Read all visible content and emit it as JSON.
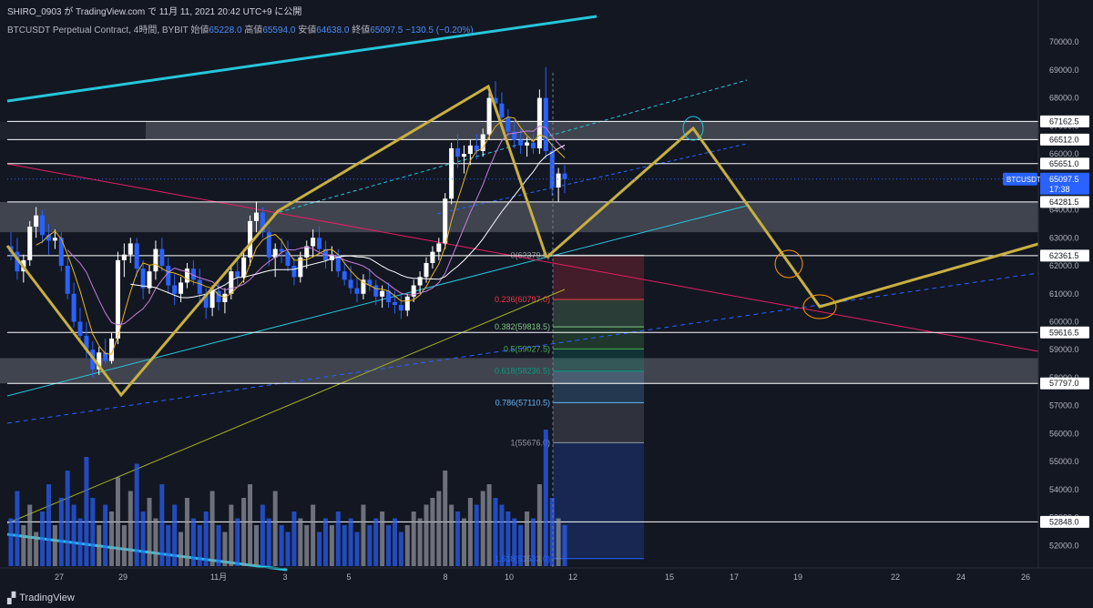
{
  "header": {
    "publish_line": "SHIRO_0903 が TradingView.com で 11月 11, 2021 20:42 UTC+9 に公開",
    "symbol": "BTCUSDT Perpetual Contract, 4時間, BYBIT",
    "open_label": "始値",
    "open": "65228.0",
    "high_label": "高値",
    "high": "65594.0",
    "low_label": "安値",
    "low": "64638.0",
    "close_label": "終値",
    "close": "65097.5",
    "change": "−130.5 (−0.20%)"
  },
  "footer": {
    "brand": "TradingView",
    "logo_icon": "tradingview-logo-icon"
  },
  "colors": {
    "background": "#131722",
    "up": "#ffffff",
    "down": "#2962ff",
    "channel": "#26c6da",
    "zigzag": "#c8b040",
    "trend_red": "#e91e63",
    "level_line": "#ffffff"
  },
  "chart_data": {
    "type": "candlestick",
    "timeframe": "4時間",
    "ylim": [
      51200,
      71500
    ],
    "y_ticks": [
      52000,
      53000,
      54000,
      55000,
      56000,
      57000,
      58000,
      59000,
      60000,
      61000,
      62000,
      63000,
      64000,
      65000,
      66000,
      67000,
      68000,
      69000,
      70000
    ],
    "y_tick_format": "0.0",
    "x_ticks": [
      "27",
      "29",
      "11月",
      "3",
      "5",
      "8",
      "10",
      "12",
      "15",
      "17",
      "19",
      "22",
      "24",
      "26"
    ],
    "current_price": {
      "label": "BTCUSDT",
      "value": "65097.5",
      "countdown": "17:38"
    },
    "horizontal_levels": [
      "67162.5",
      "66512.0",
      "65651.0",
      "64281.5",
      "62361.5",
      "59616.5",
      "57797.0",
      "52848.0"
    ],
    "fib_retracement": [
      {
        "label": "0(62379.0)",
        "value": 62379.0,
        "color": "#9598a1"
      },
      {
        "label": "0.236(60797.0)",
        "value": 60797.0,
        "color": "#f23645"
      },
      {
        "label": "0.382(59818.5)",
        "value": 59818.5,
        "color": "#81c784"
      },
      {
        "label": "0.5(59027.5)",
        "value": 59027.5,
        "color": "#4caf50"
      },
      {
        "label": "0.618(58236.5)",
        "value": 58236.5,
        "color": "#089981"
      },
      {
        "label": "0.786(57110.5)",
        "value": 57110.5,
        "color": "#64b5f6"
      },
      {
        "label": "1(55676.0)",
        "value": 55676.0,
        "color": "#9598a1"
      },
      {
        "label": "1.618(51533.0)",
        "value": 51533.0,
        "color": "#2962ff"
      }
    ],
    "zones": [
      {
        "from": 66512,
        "to": 67162.5,
        "color": "#9598a1"
      },
      {
        "from": 63200,
        "to": 64281.5,
        "color": "#9598a1"
      },
      {
        "from": 57797,
        "to": 58700,
        "color": "#9598a1"
      }
    ],
    "candles": [
      [
        62700,
        63200,
        62200,
        62500
      ],
      [
        62500,
        63000,
        61500,
        61800
      ],
      [
        61800,
        62400,
        61400,
        62200
      ],
      [
        62200,
        63600,
        62000,
        63400
      ],
      [
        63400,
        64100,
        63000,
        63800
      ],
      [
        63800,
        64000,
        62800,
        63100
      ],
      [
        63100,
        63500,
        62400,
        62900
      ],
      [
        62900,
        63300,
        62600,
        63000
      ],
      [
        63000,
        63200,
        61800,
        62000
      ],
      [
        62000,
        62300,
        60800,
        61000
      ],
      [
        61000,
        61400,
        59800,
        60000
      ],
      [
        60000,
        60500,
        59300,
        59500
      ],
      [
        59500,
        60000,
        58700,
        59000
      ],
      [
        59000,
        59300,
        58000,
        58300
      ],
      [
        58300,
        59100,
        58100,
        58900
      ],
      [
        58900,
        59400,
        58500,
        58600
      ],
      [
        58600,
        59600,
        58500,
        59400
      ],
      [
        59400,
        62500,
        59200,
        62200
      ],
      [
        62200,
        62800,
        61600,
        62400
      ],
      [
        62400,
        63000,
        62100,
        62800
      ],
      [
        62800,
        63000,
        61600,
        61900
      ],
      [
        61900,
        62200,
        60800,
        61200
      ],
      [
        61200,
        62000,
        61000,
        61800
      ],
      [
        61800,
        62900,
        61500,
        62600
      ],
      [
        62600,
        63000,
        61800,
        62000
      ],
      [
        62000,
        62300,
        61000,
        61300
      ],
      [
        61300,
        61700,
        60600,
        61000
      ],
      [
        61000,
        61600,
        60700,
        61400
      ],
      [
        61400,
        62100,
        61200,
        61900
      ],
      [
        61900,
        62200,
        61300,
        61500
      ],
      [
        61500,
        61900,
        60700,
        61000
      ],
      [
        61000,
        61200,
        60100,
        60500
      ],
      [
        60500,
        61300,
        60200,
        61100
      ],
      [
        61100,
        61500,
        60400,
        60700
      ],
      [
        60700,
        61200,
        60300,
        61000
      ],
      [
        61000,
        62000,
        60800,
        61800
      ],
      [
        61800,
        62300,
        61300,
        61600
      ],
      [
        61600,
        62600,
        61400,
        62300
      ],
      [
        62300,
        63800,
        62000,
        63600
      ],
      [
        63600,
        64300,
        63200,
        63900
      ],
      [
        63900,
        64100,
        63000,
        63200
      ],
      [
        63200,
        63400,
        62000,
        62300
      ],
      [
        62300,
        62800,
        61600,
        62600
      ],
      [
        62600,
        63000,
        62100,
        62500
      ],
      [
        62500,
        62900,
        61800,
        62000
      ],
      [
        62000,
        62300,
        61300,
        61600
      ],
      [
        61600,
        62500,
        61400,
        62300
      ],
      [
        62300,
        62900,
        61900,
        62700
      ],
      [
        62700,
        63300,
        62300,
        63000
      ],
      [
        63000,
        63400,
        62400,
        62600
      ],
      [
        62600,
        62900,
        61900,
        62200
      ],
      [
        62200,
        62700,
        61800,
        62400
      ],
      [
        62400,
        62600,
        61600,
        61800
      ],
      [
        61800,
        62100,
        61300,
        61500
      ],
      [
        61500,
        62000,
        61000,
        61200
      ],
      [
        61200,
        61600,
        60700,
        61000
      ],
      [
        61000,
        61700,
        60800,
        61500
      ],
      [
        61500,
        61900,
        61100,
        61300
      ],
      [
        61300,
        61500,
        60600,
        60900
      ],
      [
        60900,
        61300,
        60500,
        61100
      ],
      [
        61100,
        61400,
        60500,
        60700
      ],
      [
        60700,
        61100,
        60300,
        60600
      ],
      [
        60600,
        61000,
        60100,
        60400
      ],
      [
        60400,
        61000,
        60200,
        60900
      ],
      [
        60900,
        61500,
        60700,
        61300
      ],
      [
        61300,
        61800,
        61000,
        61600
      ],
      [
        61600,
        62300,
        61400,
        62100
      ],
      [
        62100,
        62700,
        61900,
        62500
      ],
      [
        62500,
        63000,
        62200,
        62800
      ],
      [
        62800,
        64600,
        62600,
        64400
      ],
      [
        64400,
        66400,
        64200,
        66200
      ],
      [
        66200,
        66700,
        65500,
        65900
      ],
      [
        65900,
        66300,
        65300,
        66000
      ],
      [
        66000,
        66500,
        65600,
        66300
      ],
      [
        66300,
        66700,
        65800,
        66100
      ],
      [
        66100,
        66900,
        65900,
        66700
      ],
      [
        66700,
        68200,
        66500,
        68000
      ],
      [
        68000,
        68600,
        67500,
        67800
      ],
      [
        67800,
        68200,
        67000,
        67300
      ],
      [
        67300,
        67600,
        66600,
        66800
      ],
      [
        66800,
        67200,
        66200,
        66500
      ],
      [
        66500,
        66900,
        66000,
        66300
      ],
      [
        66300,
        66600,
        65900,
        66400
      ],
      [
        66400,
        66700,
        66000,
        66200
      ],
      [
        66200,
        68300,
        66000,
        68000
      ],
      [
        68000,
        69100,
        65800,
        66100
      ],
      [
        66100,
        66400,
        64500,
        64800
      ],
      [
        64800,
        65500,
        64300,
        65300
      ],
      [
        65300,
        65600,
        64600,
        65100
      ]
    ],
    "volumes": [
      0.35,
      0.55,
      0.3,
      0.45,
      0.25,
      0.4,
      0.6,
      0.3,
      0.5,
      0.7,
      0.45,
      0.35,
      0.8,
      0.5,
      0.3,
      0.45,
      0.4,
      0.65,
      0.3,
      0.55,
      0.75,
      0.4,
      0.5,
      0.35,
      0.6,
      0.3,
      0.45,
      0.25,
      0.5,
      0.35,
      0.3,
      0.4,
      0.55,
      0.3,
      0.25,
      0.45,
      0.35,
      0.5,
      0.6,
      0.3,
      0.45,
      0.35,
      0.55,
      0.3,
      0.25,
      0.4,
      0.35,
      0.3,
      0.45,
      0.25,
      0.35,
      0.3,
      0.4,
      0.3,
      0.35,
      0.25,
      0.45,
      0.3,
      0.35,
      0.4,
      0.3,
      0.35,
      0.25,
      0.3,
      0.4,
      0.35,
      0.45,
      0.5,
      0.55,
      0.7,
      0.45,
      0.4,
      0.35,
      0.5,
      0.45,
      0.55,
      0.6,
      0.5,
      0.45,
      0.4,
      0.35,
      0.3,
      0.4,
      0.35,
      0.6,
      1.0,
      0.5,
      0.35,
      0.3
    ]
  }
}
